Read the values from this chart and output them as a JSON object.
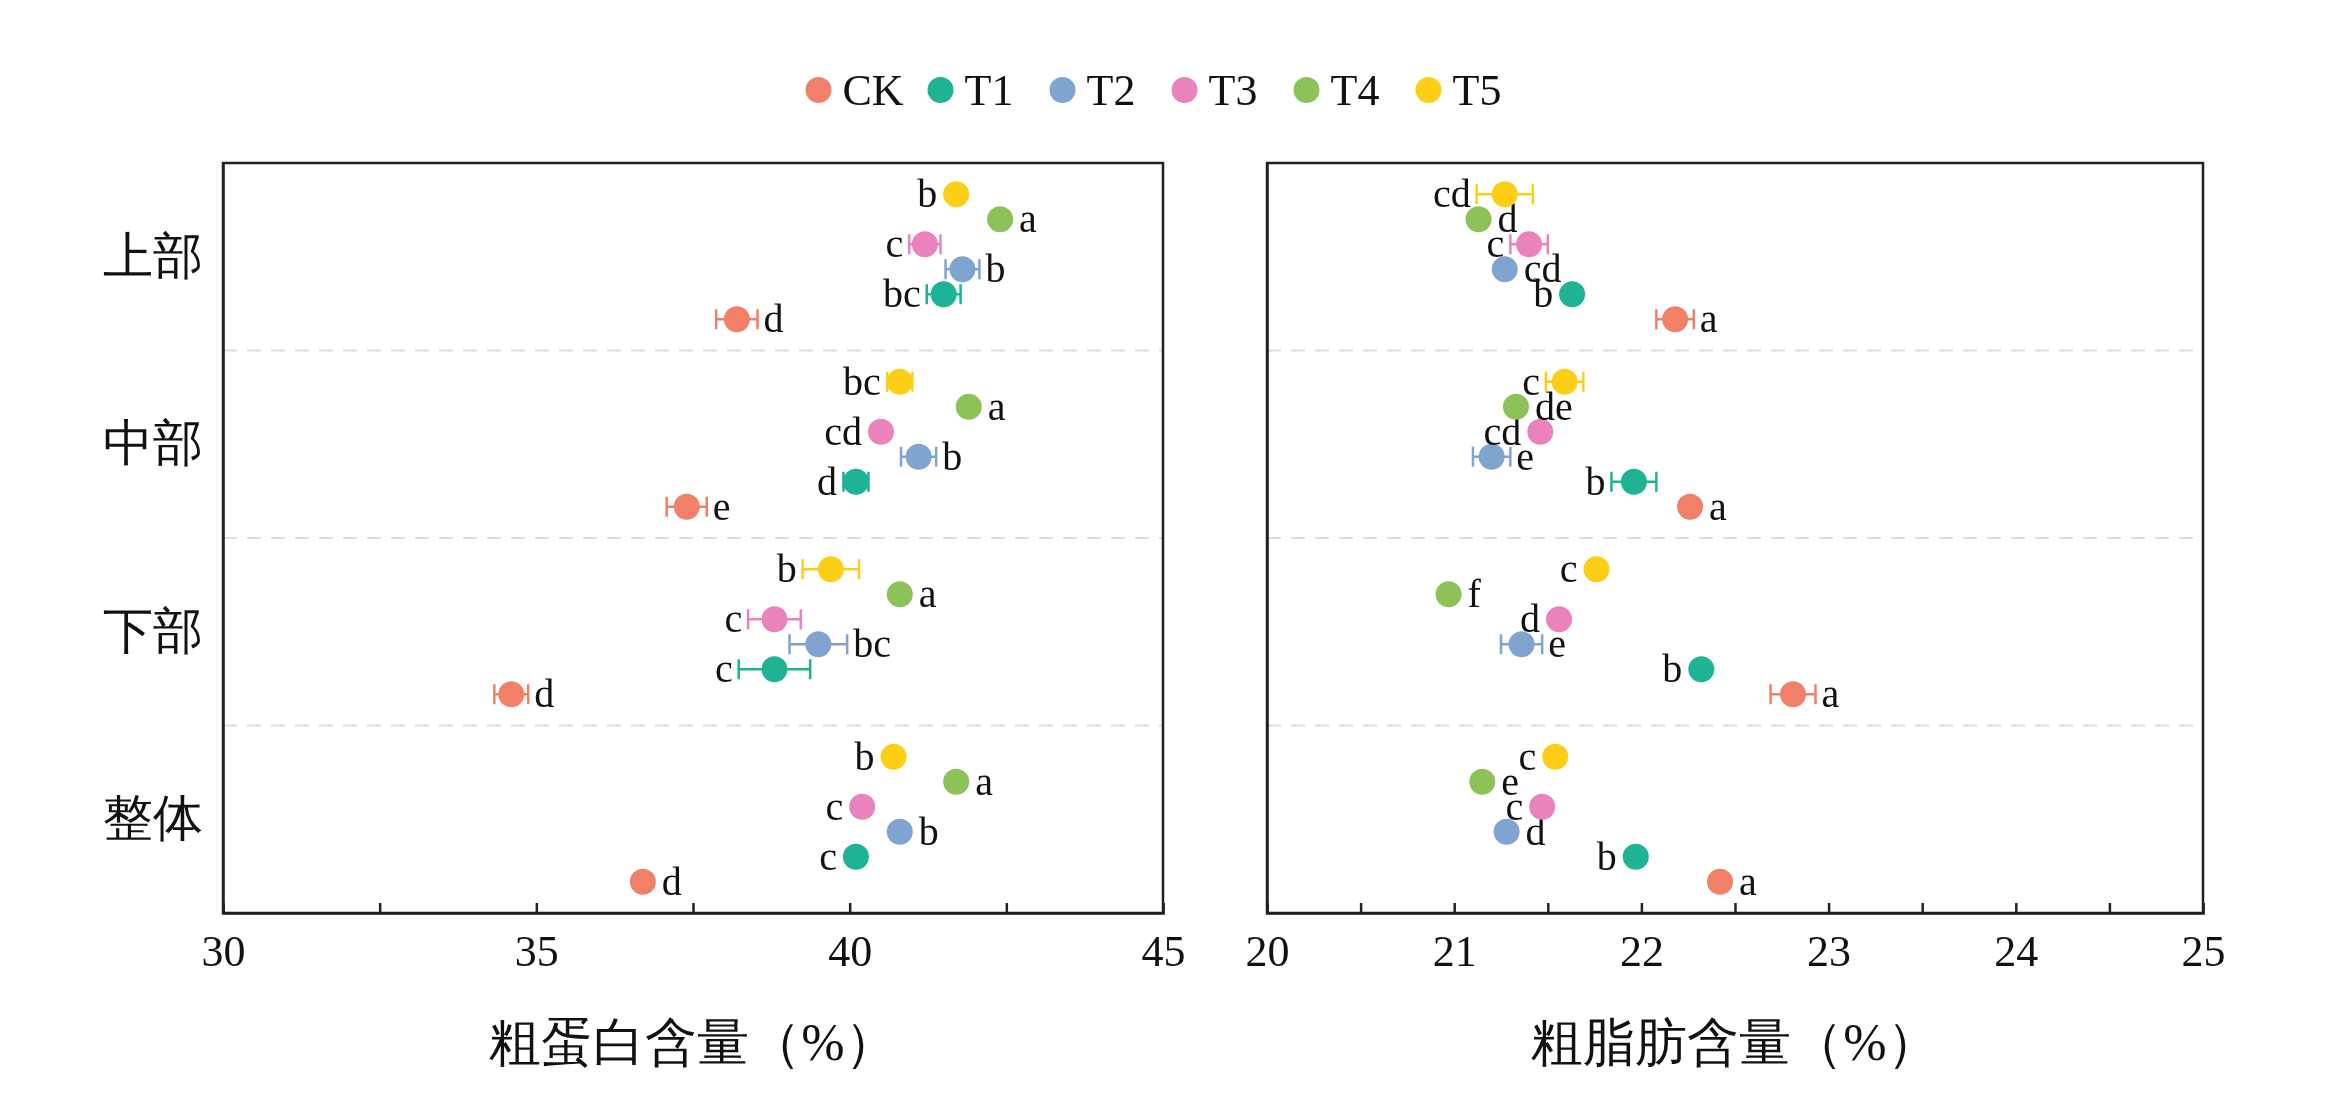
{
  "chart_data": [
    {
      "type": "scatter",
      "orientation": "horizontal",
      "xlabel": "粗蛋白含量（%）",
      "categories": [
        "上部",
        "中部",
        "下部",
        "整体"
      ],
      "xlim": [
        30,
        45
      ],
      "xticks": [
        30,
        {
          "value": 32.5,
          "label": null
        },
        35,
        {
          "value": 37.5,
          "label": null
        },
        40,
        {
          "value": 42.5,
          "label": null
        },
        45
      ],
      "grid": "y",
      "legend": "top",
      "marker": "circle",
      "series": [
        {
          "name": "CK",
          "color": "#f08068",
          "values": [
            38.2,
            37.4,
            34.6,
            36.7
          ],
          "errors": [
            0.33,
            0.32,
            0.27,
            null
          ],
          "value_labels": [
            "d",
            "e",
            "d",
            "d"
          ]
        },
        {
          "name": "T1",
          "color": "#1db394",
          "values": [
            41.5,
            40.1,
            38.8,
            40.1
          ],
          "errors": [
            0.27,
            0.2,
            0.57,
            null
          ],
          "value_labels": [
            "bc",
            "d",
            "c",
            "c"
          ]
        },
        {
          "name": "T2",
          "color": "#7fa4cf",
          "values": [
            41.8,
            41.1,
            39.5,
            40.8
          ],
          "errors": [
            0.27,
            0.28,
            0.46,
            null
          ],
          "value_labels": [
            "b",
            "b",
            "bc",
            "b"
          ]
        },
        {
          "name": "T3",
          "color": "#ea83bd",
          "values": [
            41.2,
            40.5,
            38.8,
            40.2
          ],
          "errors": [
            0.25,
            null,
            0.42,
            null
          ],
          "value_labels": [
            "c",
            "cd",
            "c",
            "c"
          ]
        },
        {
          "name": "T4",
          "color": "#8cc257",
          "values": [
            42.4,
            41.9,
            40.8,
            41.7
          ],
          "errors": [
            null,
            null,
            null,
            null
          ],
          "value_labels": [
            "a",
            "a",
            "a",
            "a"
          ]
        },
        {
          "name": "T5",
          "color": "#fccf16",
          "values": [
            41.7,
            40.8,
            39.7,
            40.7
          ],
          "errors": [
            null,
            0.2,
            0.45,
            null
          ],
          "value_labels": [
            "b",
            "bc",
            "b",
            "b"
          ]
        }
      ]
    },
    {
      "type": "scatter",
      "orientation": "horizontal",
      "xlabel": "粗脂肪含量（%）",
      "categories": [
        null,
        null,
        null,
        null
      ],
      "xlim": [
        20,
        25
      ],
      "xticks": [
        20,
        {
          "value": 20.5,
          "label": null
        },
        21,
        {
          "value": 21.5,
          "label": null
        },
        22,
        {
          "value": 22.5,
          "label": null
        },
        23,
        {
          "value": 23.5,
          "label": null
        },
        24,
        {
          "value": 24.5,
          "label": null
        },
        25
      ],
      "grid": "y",
      "marker": "circle",
      "series": [
        {
          "color": "#f08068",
          "values": [
            22.18,
            22.26,
            22.81,
            22.42
          ],
          "errors": [
            0.1,
            null,
            0.12,
            null
          ],
          "value_labels": [
            "a",
            "a",
            "a",
            "a"
          ]
        },
        {
          "color": "#1db394",
          "values": [
            21.63,
            21.96,
            22.32,
            21.97
          ],
          "errors": [
            null,
            0.12,
            null,
            null
          ],
          "value_labels": [
            "b",
            "b",
            "b",
            "b"
          ]
        },
        {
          "color": "#7fa4cf",
          "values": [
            21.27,
            21.2,
            21.36,
            21.28
          ],
          "errors": [
            null,
            0.1,
            0.11,
            null
          ],
          "value_labels": [
            "cd",
            "e",
            "e",
            "d"
          ]
        },
        {
          "color": "#ea83bd",
          "values": [
            21.4,
            21.46,
            21.56,
            21.47
          ],
          "errors": [
            0.1,
            null,
            null,
            null
          ],
          "value_labels": [
            "c",
            "cd",
            "d",
            "c"
          ]
        },
        {
          "color": "#8cc257",
          "values": [
            21.13,
            21.33,
            20.97,
            21.15
          ],
          "errors": [
            null,
            null,
            null,
            null
          ],
          "value_labels": [
            "d",
            "de",
            "f",
            "e"
          ]
        },
        {
          "color": "#fccf16",
          "values": [
            21.27,
            21.59,
            21.76,
            21.54
          ],
          "errors": [
            0.15,
            0.1,
            null,
            null
          ],
          "value_labels": [
            "cd",
            "c",
            "c",
            "c"
          ]
        }
      ]
    }
  ]
}
